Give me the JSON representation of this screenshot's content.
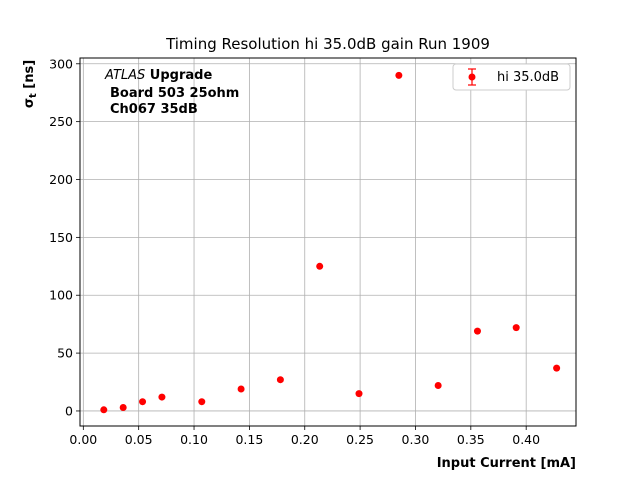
{
  "chart_data": {
    "type": "scatter",
    "title": "Timing Resolution hi 35.0dB gain Run 1909",
    "xlabel": "Input Current [mA]",
    "ylabel": "σ_t [ns]",
    "ylabel_main": "σ",
    "ylabel_sub": "t",
    "ylabel_unit": " [ns]",
    "xlim": [
      -0.003,
      0.445
    ],
    "ylim": [
      -13,
      305
    ],
    "xticks": [
      0.0,
      0.05,
      0.1,
      0.15,
      0.2,
      0.25,
      0.3,
      0.35,
      0.4
    ],
    "xtick_labels": [
      "0.00",
      "0.05",
      "0.10",
      "0.15",
      "0.20",
      "0.25",
      "0.30",
      "0.35",
      "0.40"
    ],
    "yticks": [
      0,
      50,
      100,
      150,
      200,
      250,
      300
    ],
    "ytick_labels": [
      "0",
      "50",
      "100",
      "150",
      "200",
      "250",
      "300"
    ],
    "grid": true,
    "legend_position": "top-right",
    "series": [
      {
        "name": "hi 35.0dB",
        "color": "#ff0000",
        "x": [
          0.0185,
          0.036,
          0.0535,
          0.071,
          0.107,
          0.1425,
          0.178,
          0.2135,
          0.249,
          0.285,
          0.3205,
          0.356,
          0.391,
          0.4275
        ],
        "y": [
          1,
          3,
          8,
          12,
          8,
          19,
          27,
          125,
          15,
          290,
          22,
          69,
          72,
          37
        ]
      }
    ],
    "annotation": {
      "line1_italic": "ATLAS",
      "line1_bold": " Upgrade",
      "line2": "Board 503 25ohm",
      "line3": "Ch067 35dB"
    }
  }
}
